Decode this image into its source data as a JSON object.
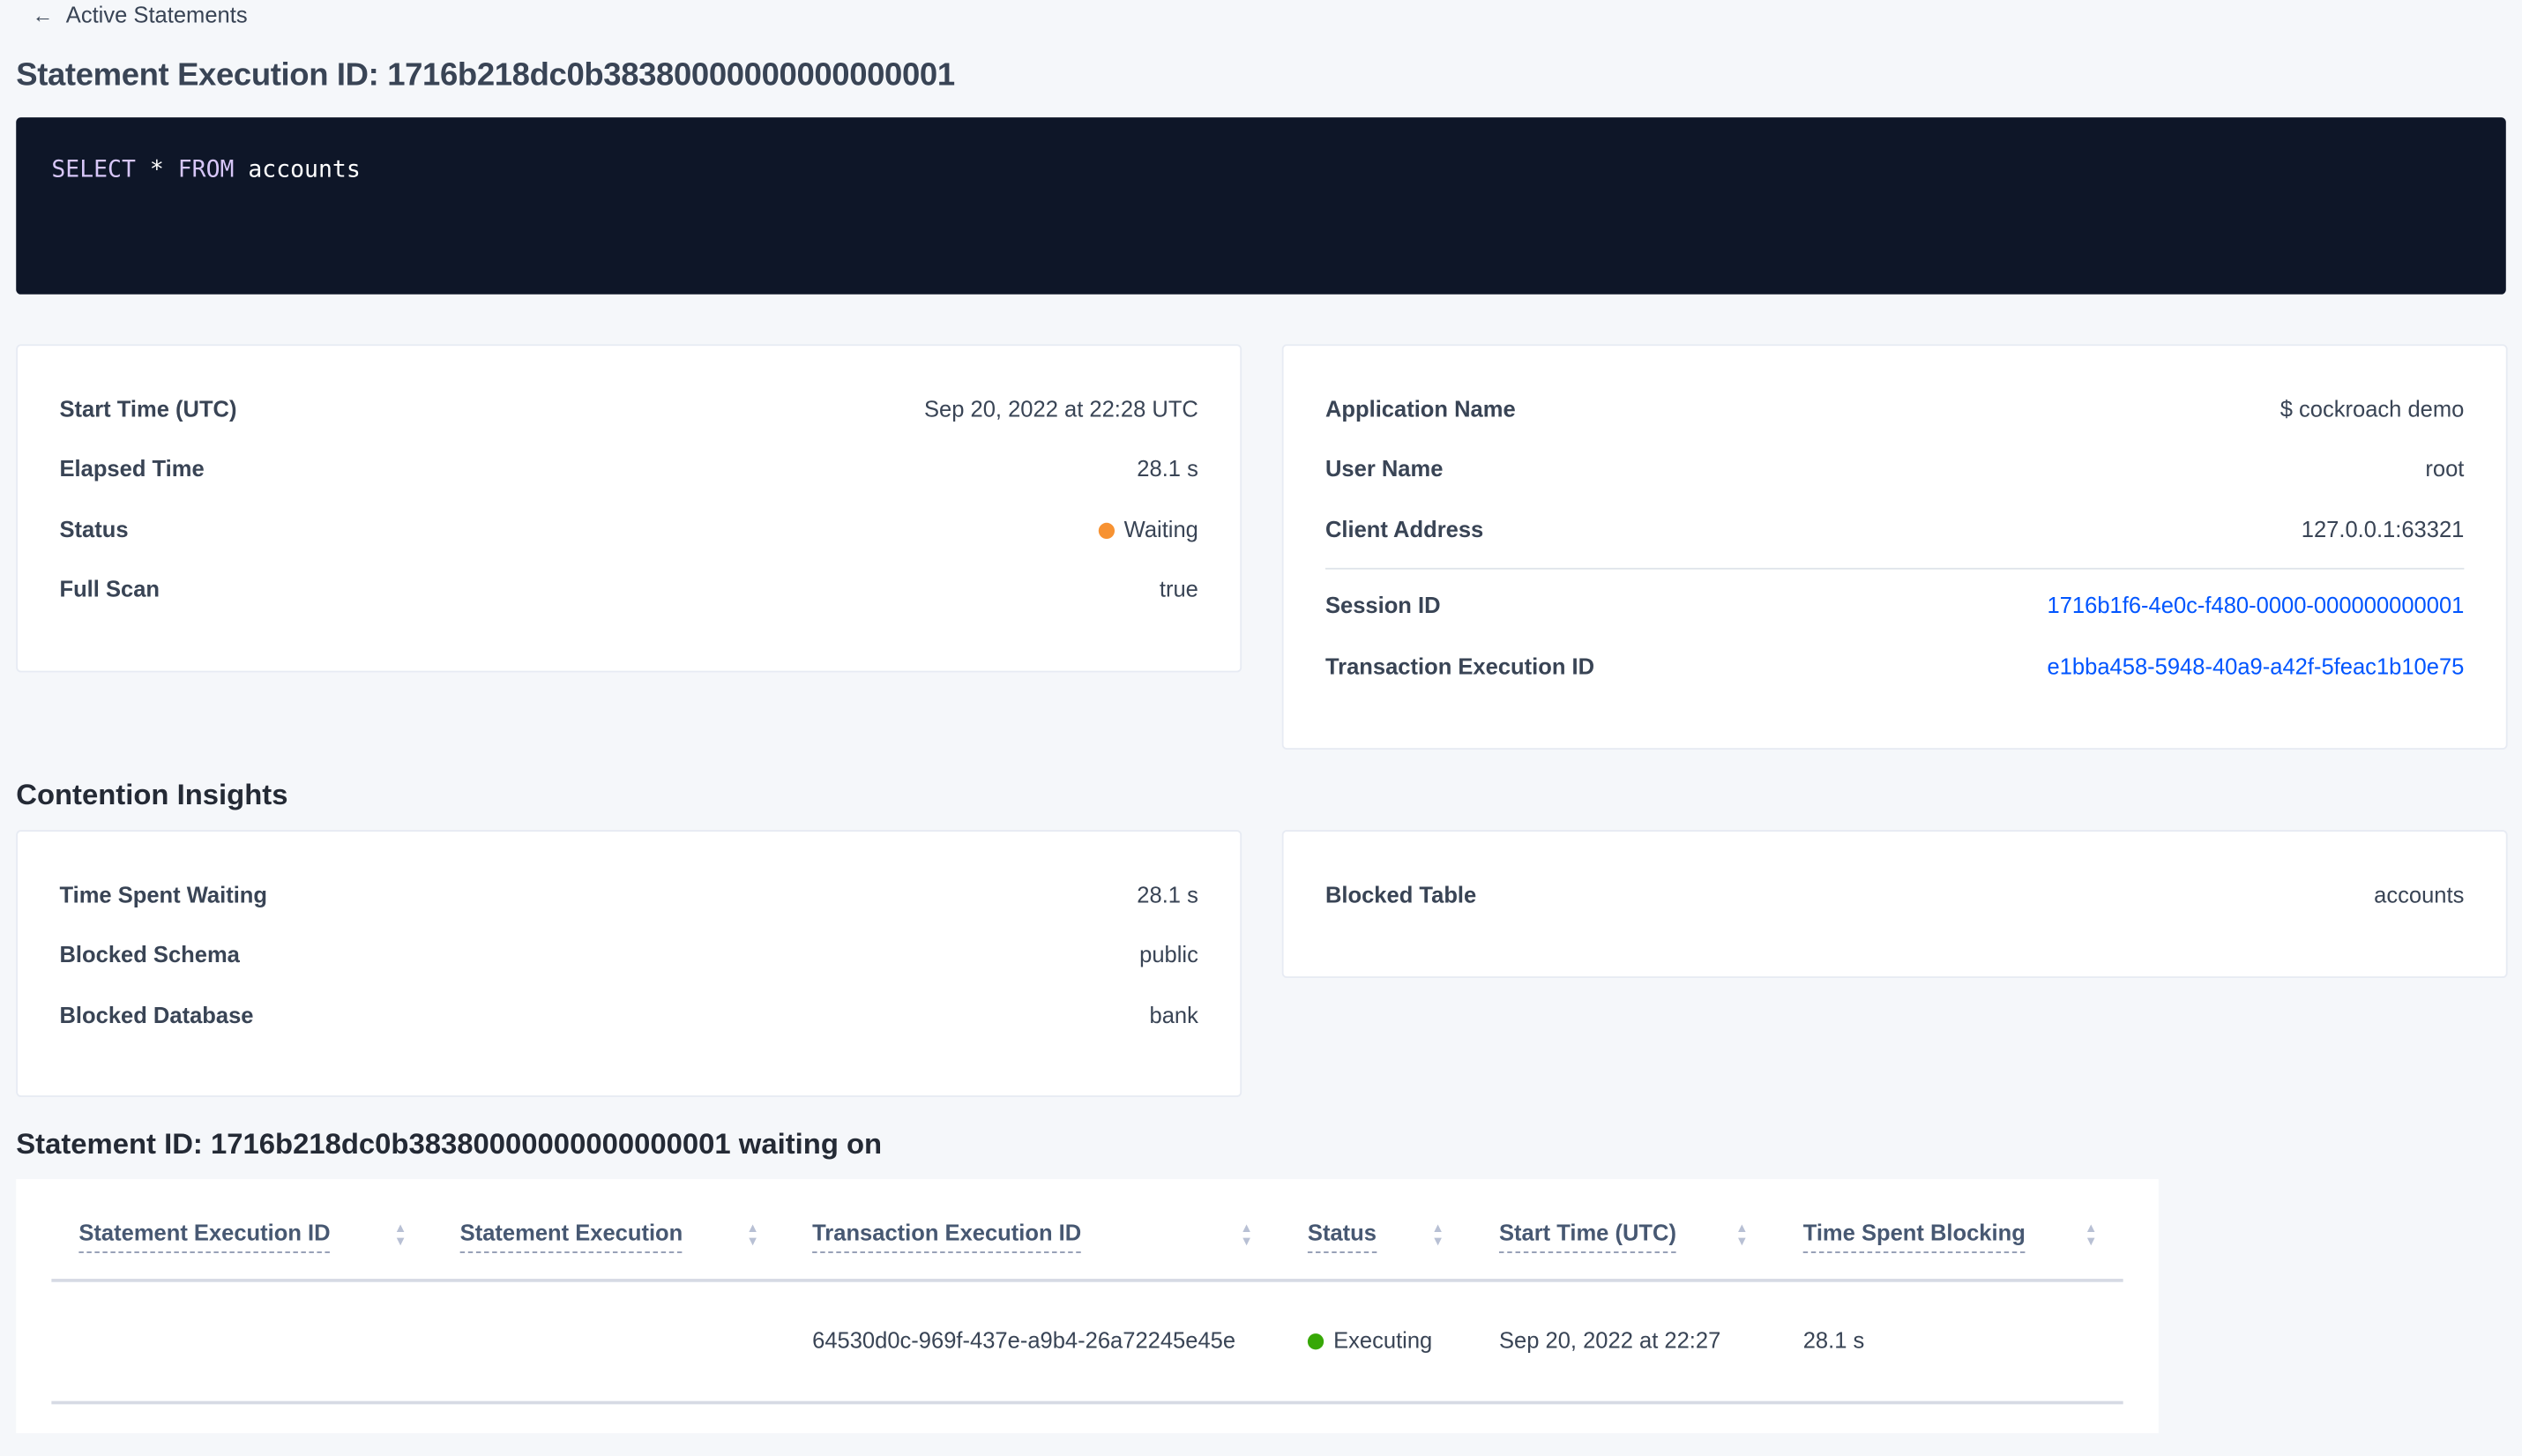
{
  "nav": {
    "back_label": "Active Statements",
    "back_icon": "arrow-left-icon"
  },
  "page_title": "Statement Execution ID: 1716b218dc0b38380000000000000001",
  "sql": {
    "keyword1": "SELECT",
    "star": "*",
    "keyword2": "FROM",
    "table": "accounts"
  },
  "overview_left": [
    {
      "label": "Start Time (UTC)",
      "value": "Sep 20, 2022 at 22:28 UTC"
    },
    {
      "label": "Elapsed Time",
      "value": "28.1 s"
    },
    {
      "label": "Status",
      "value": "Waiting",
      "dot_color": "#f79232"
    },
    {
      "label": "Full Scan",
      "value": "true"
    }
  ],
  "overview_right": [
    {
      "label": "Application Name",
      "value": "$ cockroach demo"
    },
    {
      "label": "User Name",
      "value": "root"
    },
    {
      "label": "Client Address",
      "value": "127.0.0.1:63321"
    },
    {
      "label": "Session ID",
      "value": "1716b1f6-4e0c-f480-0000-000000000001"
    },
    {
      "label": "Transaction Execution ID",
      "value": "e1bba458-5948-40a9-a42f-5feac1b10e75"
    }
  ],
  "contention": {
    "heading": "Contention Insights",
    "left": [
      {
        "label": "Time Spent Waiting",
        "value": "28.1 s"
      },
      {
        "label": "Blocked Schema",
        "value": "public"
      },
      {
        "label": "Blocked Database",
        "value": "bank"
      }
    ],
    "right": [
      {
        "label": "Blocked Table",
        "value": "accounts"
      }
    ]
  },
  "waiting": {
    "heading": "Statement ID: 1716b218dc0b38380000000000000001 waiting on",
    "columns": [
      "Statement Execution ID",
      "Statement Execution",
      "Transaction Execution ID",
      "Status",
      "Start Time (UTC)",
      "Time Spent Blocking"
    ],
    "rows": [
      {
        "statement_execution_id": "",
        "statement_execution": "",
        "transaction_execution_id": "64530d0c-969f-437e-a9b4-26a72245e45e",
        "status": "Executing",
        "status_color": "#37a806",
        "start_time": "Sep 20, 2022 at 22:27",
        "time_spent_blocking": "28.1 s"
      }
    ]
  },
  "colors": {
    "link": "#0055ff",
    "code_bg": "#0e1628"
  }
}
